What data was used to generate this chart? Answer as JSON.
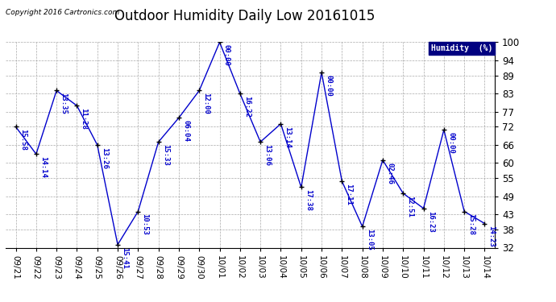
{
  "title": "Outdoor Humidity Daily Low 20161015",
  "copyright": "Copyright 2016 Cartronics.com",
  "legend_label": "Humidity  (%)",
  "dates": [
    "09/21",
    "09/22",
    "09/23",
    "09/24",
    "09/25",
    "09/26",
    "09/27",
    "09/28",
    "09/29",
    "09/30",
    "10/01",
    "10/02",
    "10/03",
    "10/04",
    "10/05",
    "10/06",
    "10/07",
    "10/08",
    "10/09",
    "10/10",
    "10/11",
    "10/12",
    "10/13",
    "10/14"
  ],
  "values": [
    72,
    63,
    84,
    79,
    66,
    33,
    44,
    67,
    75,
    84,
    100,
    83,
    67,
    73,
    52,
    90,
    54,
    39,
    61,
    50,
    45,
    71,
    44,
    40
  ],
  "times": [
    "15:58",
    "14:14",
    "13:35",
    "11:28",
    "13:26",
    "15:41",
    "10:53",
    "15:33",
    "06:04",
    "12:00",
    "00:00",
    "16:22",
    "13:06",
    "13:14",
    "17:38",
    "00:00",
    "17:11",
    "13:05",
    "02:46",
    "12:51",
    "16:23",
    "00:00",
    "15:28",
    "14:23"
  ],
  "line_color": "#0000cc",
  "marker_color": "#000000",
  "background_color": "#ffffff",
  "grid_color": "#aaaaaa",
  "ylim_min": 32,
  "ylim_max": 100,
  "yticks": [
    32,
    38,
    43,
    49,
    55,
    60,
    66,
    72,
    77,
    83,
    89,
    94,
    100
  ],
  "title_fontsize": 12,
  "time_fontsize": 6.5,
  "legend_bg": "#000080",
  "legend_fg": "#ffffff"
}
